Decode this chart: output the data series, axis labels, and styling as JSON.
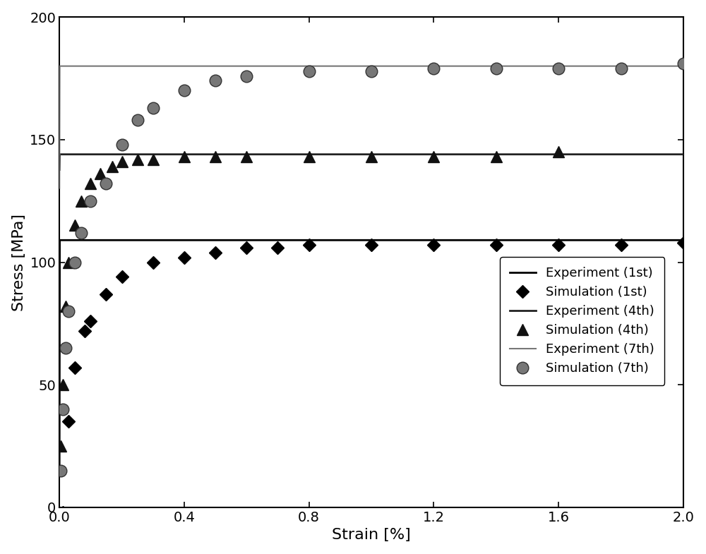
{
  "title": "",
  "xlabel": "Strain [%]",
  "ylabel": "Stress [MPa]",
  "xlim": [
    0,
    2.0
  ],
  "ylim": [
    0,
    200
  ],
  "xticks": [
    0.0,
    0.4,
    0.8,
    1.2,
    1.6,
    2.0
  ],
  "yticks": [
    0,
    50,
    100,
    150,
    200
  ],
  "background_color": "#ffffff",
  "curve_1st": {
    "sat": 109,
    "k": 80,
    "n": 0.28,
    "color": "#000000",
    "lw": 2.0
  },
  "curve_4th": {
    "sat": 144,
    "k": 120,
    "n": 0.18,
    "color": "#222222",
    "lw": 2.0
  },
  "curve_7th": {
    "sat": 180,
    "k": 145,
    "n": 0.22,
    "color": "#777777",
    "lw": 1.5
  },
  "sim_1st_x": [
    0.01,
    0.03,
    0.05,
    0.08,
    0.1,
    0.15,
    0.2,
    0.3,
    0.4,
    0.5,
    0.6,
    0.7,
    0.8,
    1.0,
    1.2,
    1.4,
    1.6,
    1.8,
    2.0
  ],
  "sim_1st_y": [
    -2,
    35,
    57,
    72,
    76,
    87,
    94,
    100,
    102,
    104,
    106,
    106,
    107,
    107,
    107,
    107,
    107,
    107,
    108
  ],
  "sim_4th_x": [
    0.005,
    0.01,
    0.02,
    0.03,
    0.05,
    0.07,
    0.1,
    0.13,
    0.17,
    0.2,
    0.25,
    0.3,
    0.4,
    0.5,
    0.6,
    0.8,
    1.0,
    1.2,
    1.4,
    1.6
  ],
  "sim_4th_y": [
    25,
    50,
    82,
    100,
    115,
    125,
    132,
    136,
    139,
    141,
    142,
    142,
    143,
    143,
    143,
    143,
    143,
    143,
    143,
    145
  ],
  "sim_7th_x": [
    0.005,
    0.01,
    0.02,
    0.03,
    0.05,
    0.07,
    0.1,
    0.15,
    0.2,
    0.25,
    0.3,
    0.4,
    0.5,
    0.6,
    0.8,
    1.0,
    1.2,
    1.4,
    1.6,
    1.8,
    2.0
  ],
  "sim_7th_y": [
    15,
    40,
    65,
    80,
    100,
    112,
    125,
    132,
    148,
    158,
    163,
    170,
    174,
    176,
    178,
    178,
    179,
    179,
    179,
    179,
    181
  ],
  "marker_color_1st": "#000000",
  "marker_color_4th": "#111111",
  "marker_color_7th": "#555555",
  "legend_fontsize": 13,
  "axis_fontsize": 16,
  "tick_fontsize": 14
}
